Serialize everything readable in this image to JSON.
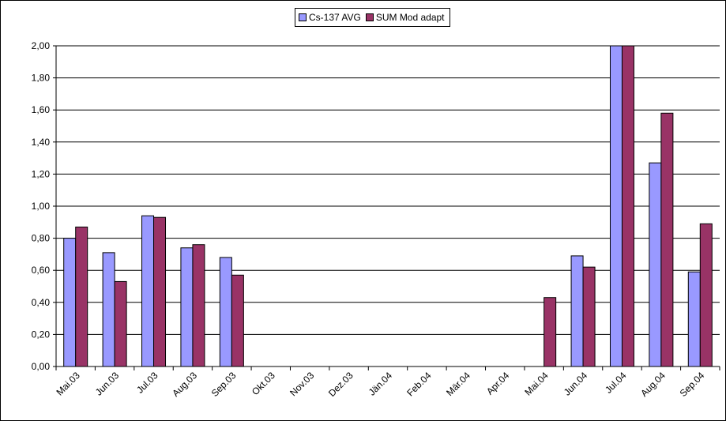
{
  "chart_data": {
    "type": "bar",
    "categories": [
      "Mai.03",
      "Jun.03",
      "Jul.03",
      "Aug.03",
      "Sep.03",
      "Okt.03",
      "Nov.03",
      "Dez.03",
      "Jän.04",
      "Feb.04",
      "Mär.04",
      "Apr.04",
      "Mai.04",
      "Jun.04",
      "Jul.04",
      "Aug.04",
      "Sep.04"
    ],
    "series": [
      {
        "name": "Cs-137 AVG",
        "color": "#9999ff",
        "values": [
          0.8,
          0.71,
          0.94,
          0.74,
          0.68,
          null,
          null,
          null,
          null,
          null,
          null,
          null,
          null,
          0.69,
          2.0,
          1.27,
          0.59
        ]
      },
      {
        "name": "SUM Mod adapt",
        "color": "#993366",
        "values": [
          0.87,
          0.53,
          0.93,
          0.76,
          0.57,
          null,
          null,
          null,
          null,
          null,
          null,
          null,
          0.43,
          0.62,
          2.0,
          1.58,
          0.89
        ]
      }
    ],
    "ylim": [
      0,
      2.0
    ],
    "yticks": [
      "0,00",
      "0,20",
      "0,40",
      "0,60",
      "0,80",
      "1,00",
      "1,20",
      "1,40",
      "1,60",
      "1,80",
      "2,00"
    ],
    "grid": true,
    "legend": "top-center",
    "title": "",
    "xlabel": "",
    "ylabel": ""
  }
}
